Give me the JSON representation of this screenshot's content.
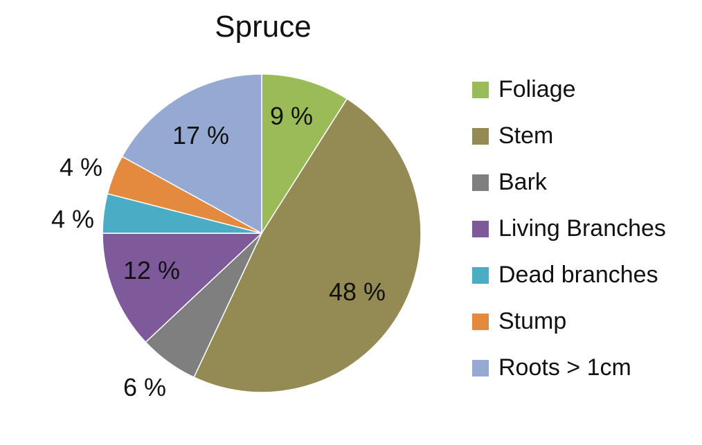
{
  "chart_data": {
    "type": "pie",
    "title": "Spruce",
    "categories": [
      "Foliage",
      "Stem",
      "Bark",
      "Living Branches",
      "Dead branches",
      "Stump",
      "Roots > 1cm"
    ],
    "values": [
      9,
      48,
      6,
      12,
      4,
      4,
      17
    ],
    "data_labels": [
      "9 %",
      "48 %",
      "6 %",
      "12 %",
      "4 %",
      "4 %",
      "17 %"
    ],
    "colors": [
      "#9BBB59",
      "#948A54",
      "#7F7F7F",
      "#7E5A9B",
      "#4BACC6",
      "#E48A3F",
      "#95A9D3"
    ],
    "start_angle": "12 o'clock",
    "direction": "clockwise",
    "legend_position": "right"
  }
}
